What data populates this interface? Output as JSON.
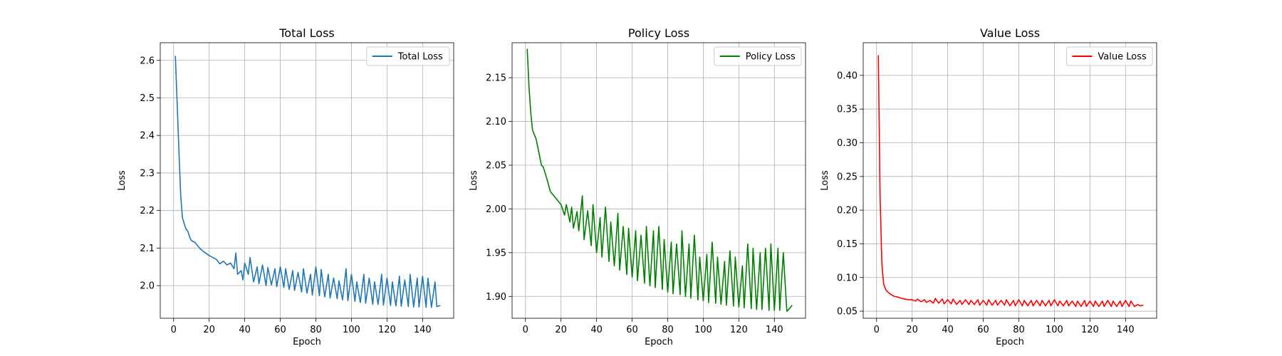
{
  "chart_data": [
    {
      "type": "line",
      "title": "Total Loss",
      "xlabel": "Epoch",
      "ylabel": "Loss",
      "xlim": [
        -7.5,
        157.5
      ],
      "ylim": [
        1.913,
        2.647
      ],
      "xticks": [
        0,
        20,
        40,
        60,
        80,
        100,
        120,
        140
      ],
      "yticks": [
        2.0,
        2.1,
        2.2,
        2.3,
        2.4,
        2.5,
        2.6
      ],
      "ytick_decimals": 1,
      "grid": true,
      "legend_position": "top-right",
      "series": [
        {
          "name": "Total Loss",
          "color": "#1f77b4",
          "x": [
            1,
            3,
            4,
            5,
            6,
            7,
            8,
            9,
            10,
            12,
            15,
            17,
            20,
            22,
            24,
            26,
            28,
            30,
            32,
            34,
            35,
            36,
            38,
            39,
            40,
            42,
            43,
            45,
            47,
            48,
            50,
            52,
            53,
            55,
            57,
            58,
            60,
            62,
            63,
            65,
            67,
            68,
            70,
            72,
            73,
            75,
            77,
            78,
            80,
            82,
            83,
            85,
            87,
            88,
            90,
            92,
            93,
            95,
            97,
            98,
            100,
            102,
            103,
            105,
            107,
            108,
            110,
            112,
            113,
            115,
            117,
            118,
            120,
            122,
            123,
            125,
            127,
            128,
            130,
            132,
            133,
            135,
            137,
            138,
            140,
            142,
            143,
            145,
            147,
            148,
            150
          ],
          "y": [
            2.612,
            2.36,
            2.24,
            2.18,
            2.165,
            2.15,
            2.145,
            2.13,
            2.12,
            2.115,
            2.098,
            2.09,
            2.08,
            2.075,
            2.07,
            2.058,
            2.065,
            2.055,
            2.06,
            2.045,
            2.087,
            2.03,
            2.04,
            2.015,
            2.06,
            2.03,
            2.075,
            2.01,
            2.05,
            2.005,
            2.055,
            2.0,
            2.048,
            2.002,
            2.045,
            1.997,
            2.05,
            1.995,
            2.045,
            1.99,
            2.04,
            1.987,
            2.035,
            1.983,
            2.045,
            1.98,
            2.03,
            1.975,
            2.05,
            1.973,
            2.043,
            1.97,
            2.03,
            1.967,
            2.02,
            1.965,
            2.013,
            1.962,
            2.045,
            1.96,
            2.03,
            1.958,
            2.01,
            1.955,
            2.03,
            1.953,
            2.02,
            1.95,
            2.01,
            1.95,
            2.03,
            1.948,
            2.02,
            1.947,
            2.01,
            1.946,
            2.025,
            1.945,
            2.015,
            1.944,
            2.03,
            1.943,
            2.02,
            1.943,
            2.025,
            1.942,
            2.02,
            1.942,
            2.01,
            1.944,
            1.947
          ]
        }
      ]
    },
    {
      "type": "line",
      "title": "Policy Loss",
      "xlabel": "Epoch",
      "ylabel": "Loss",
      "xlim": [
        -7.5,
        157.5
      ],
      "ylim": [
        1.875,
        2.19
      ],
      "xticks": [
        0,
        20,
        40,
        60,
        80,
        100,
        120,
        140
      ],
      "yticks": [
        1.9,
        1.95,
        2.0,
        2.05,
        2.1,
        2.15
      ],
      "ytick_decimals": 2,
      "grid": true,
      "legend_position": "top-right",
      "series": [
        {
          "name": "Policy Loss",
          "color": "#008000",
          "x": [
            1,
            2,
            3,
            4,
            5,
            6,
            7,
            8,
            9,
            10,
            12,
            14,
            16,
            18,
            20,
            22,
            23,
            25,
            26,
            27,
            29,
            30,
            32,
            33,
            35,
            37,
            38,
            40,
            42,
            43,
            45,
            47,
            48,
            50,
            52,
            53,
            55,
            57,
            58,
            60,
            62,
            63,
            65,
            67,
            68,
            70,
            72,
            73,
            75,
            77,
            78,
            80,
            82,
            83,
            85,
            87,
            88,
            90,
            92,
            93,
            95,
            97,
            98,
            100,
            102,
            103,
            105,
            107,
            108,
            110,
            112,
            113,
            115,
            117,
            118,
            120,
            122,
            123,
            125,
            127,
            128,
            130,
            132,
            133,
            135,
            137,
            138,
            140,
            142,
            143,
            145,
            147,
            148,
            150
          ],
          "y": [
            2.183,
            2.14,
            2.11,
            2.09,
            2.085,
            2.08,
            2.07,
            2.06,
            2.05,
            2.048,
            2.035,
            2.02,
            2.015,
            2.01,
            2.005,
            1.993,
            2.005,
            1.985,
            2.002,
            1.978,
            1.997,
            1.975,
            2.015,
            1.965,
            1.998,
            1.958,
            2.005,
            1.95,
            1.99,
            1.945,
            2.002,
            1.94,
            1.985,
            1.935,
            1.995,
            1.93,
            1.98,
            1.925,
            1.978,
            1.922,
            1.975,
            1.918,
            1.97,
            1.915,
            1.98,
            1.912,
            1.975,
            1.91,
            1.98,
            1.908,
            1.965,
            1.905,
            1.962,
            1.903,
            1.96,
            1.902,
            1.975,
            1.9,
            1.96,
            1.898,
            1.97,
            1.896,
            1.945,
            1.895,
            1.948,
            1.893,
            1.962,
            1.892,
            1.945,
            1.891,
            1.94,
            1.89,
            1.952,
            1.889,
            1.945,
            1.888,
            1.935,
            1.887,
            1.96,
            1.886,
            1.955,
            1.885,
            1.95,
            1.885,
            1.955,
            1.884,
            1.96,
            1.884,
            1.955,
            1.884,
            1.95,
            1.883,
            1.885,
            1.89
          ]
        }
      ]
    },
    {
      "type": "line",
      "title": "Value Loss",
      "xlabel": "Epoch",
      "ylabel": "Loss",
      "xlim": [
        -7.5,
        157.5
      ],
      "ylim": [
        0.0395,
        0.4485
      ],
      "xticks": [
        0,
        20,
        40,
        60,
        80,
        100,
        120,
        140
      ],
      "yticks": [
        0.05,
        0.1,
        0.15,
        0.2,
        0.25,
        0.3,
        0.35,
        0.4
      ],
      "ytick_decimals": 2,
      "grid": true,
      "legend_position": "top-right",
      "series": [
        {
          "name": "Value Loss",
          "color": "#ff0000",
          "x": [
            1,
            2,
            3,
            4,
            5,
            6,
            8,
            10,
            12,
            14,
            16,
            18,
            20,
            22,
            23,
            25,
            27,
            28,
            30,
            32,
            33,
            35,
            37,
            38,
            40,
            42,
            43,
            45,
            47,
            48,
            50,
            52,
            53,
            55,
            57,
            58,
            60,
            62,
            63,
            65,
            67,
            68,
            70,
            72,
            73,
            75,
            77,
            78,
            80,
            82,
            83,
            85,
            87,
            88,
            90,
            92,
            93,
            95,
            97,
            98,
            100,
            102,
            103,
            105,
            107,
            108,
            110,
            112,
            113,
            115,
            117,
            118,
            120,
            122,
            123,
            125,
            127,
            128,
            130,
            132,
            133,
            135,
            137,
            138,
            140,
            142,
            143,
            145,
            147,
            148,
            150
          ],
          "y": [
            0.43,
            0.22,
            0.12,
            0.09,
            0.083,
            0.079,
            0.075,
            0.072,
            0.071,
            0.069,
            0.068,
            0.067,
            0.067,
            0.065,
            0.068,
            0.064,
            0.067,
            0.063,
            0.066,
            0.062,
            0.069,
            0.062,
            0.068,
            0.061,
            0.067,
            0.061,
            0.068,
            0.06,
            0.066,
            0.06,
            0.067,
            0.06,
            0.066,
            0.06,
            0.067,
            0.059,
            0.066,
            0.059,
            0.067,
            0.059,
            0.066,
            0.059,
            0.066,
            0.059,
            0.067,
            0.058,
            0.066,
            0.058,
            0.067,
            0.058,
            0.066,
            0.058,
            0.066,
            0.058,
            0.066,
            0.058,
            0.066,
            0.058,
            0.066,
            0.058,
            0.067,
            0.058,
            0.065,
            0.058,
            0.066,
            0.058,
            0.065,
            0.057,
            0.065,
            0.057,
            0.066,
            0.057,
            0.065,
            0.057,
            0.065,
            0.057,
            0.065,
            0.057,
            0.066,
            0.057,
            0.065,
            0.057,
            0.065,
            0.057,
            0.066,
            0.057,
            0.065,
            0.057,
            0.06,
            0.058,
            0.059
          ]
        }
      ]
    }
  ]
}
